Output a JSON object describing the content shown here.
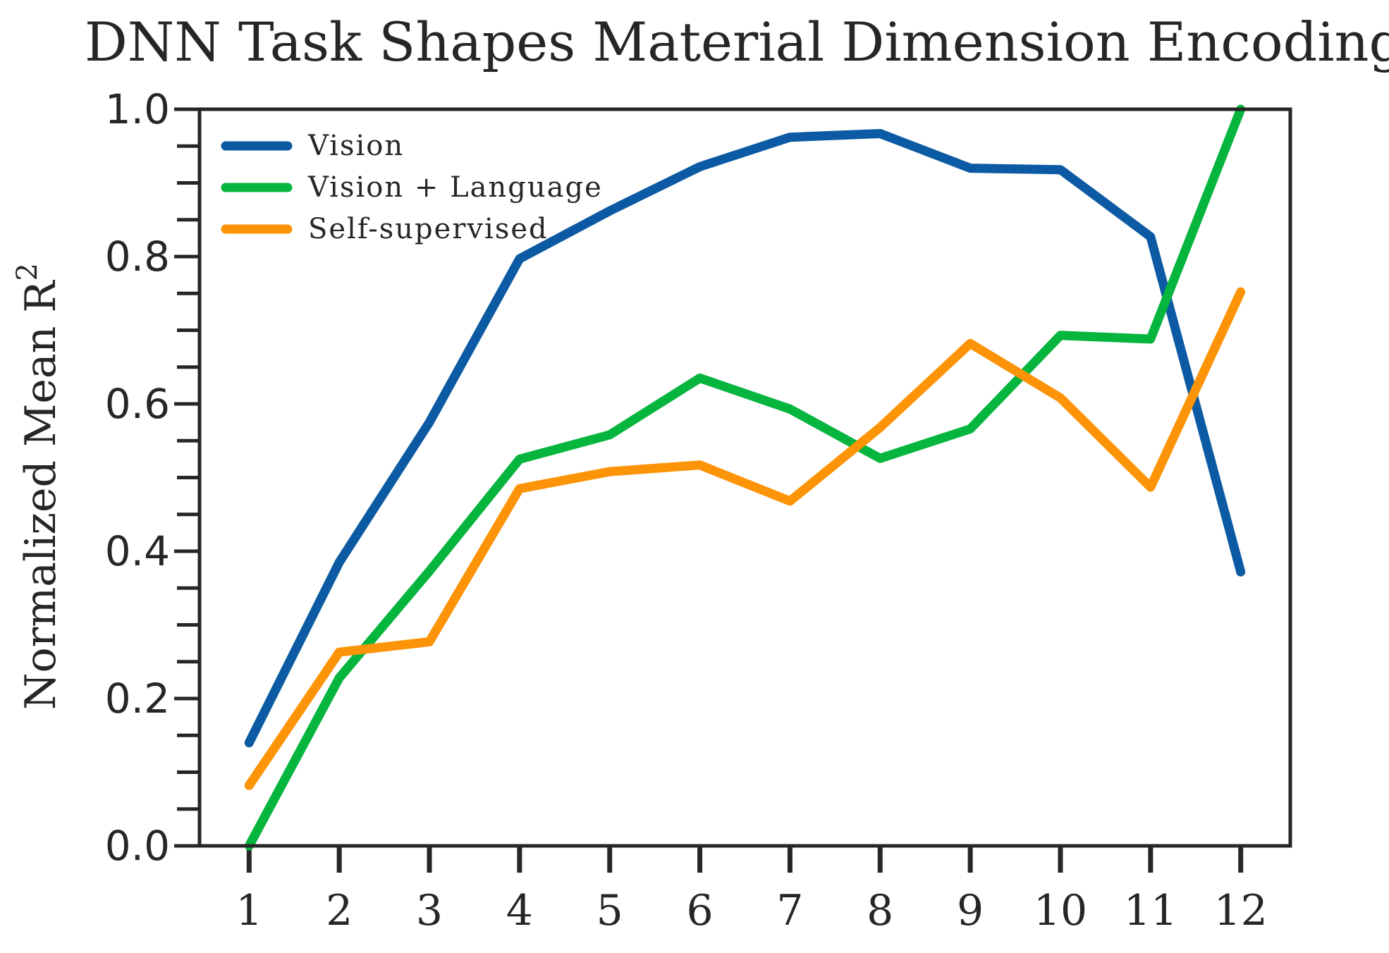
{
  "chart_data": {
    "type": "line",
    "title": "DNN Task Shapes Material Dimension Encoding",
    "xlabel": "",
    "ylabel": "Normalized Mean R",
    "ylabel_superscript": "2",
    "x": [
      1,
      2,
      3,
      4,
      5,
      6,
      7,
      8,
      9,
      10,
      11,
      12
    ],
    "xlim": [
      0.45,
      12.55
    ],
    "ylim": [
      0.0,
      1.0
    ],
    "y_ticks": [
      "0.0",
      "0.2",
      "0.4",
      "0.6",
      "0.8",
      "1.0"
    ],
    "x_ticks": [
      "1",
      "2",
      "3",
      "4",
      "5",
      "6",
      "7",
      "8",
      "9",
      "10",
      "11",
      "12"
    ],
    "grid": false,
    "legend_position": "top-left",
    "series": [
      {
        "name": "Vision",
        "color": "#0b5aa3",
        "values": [
          0.14,
          0.385,
          0.575,
          0.797,
          0.862,
          0.922,
          0.962,
          0.967,
          0.92,
          0.918,
          0.827,
          0.372
        ]
      },
      {
        "name": "Vision + Language",
        "color": "#06b53e",
        "values": [
          0.0,
          0.228,
          0.373,
          0.525,
          0.558,
          0.635,
          0.593,
          0.526,
          0.566,
          0.693,
          0.688,
          1.0
        ]
      },
      {
        "name": "Self-supervised",
        "color": "#fd9306",
        "values": [
          0.082,
          0.263,
          0.277,
          0.485,
          0.508,
          0.517,
          0.468,
          0.568,
          0.682,
          0.608,
          0.487,
          0.752
        ]
      }
    ]
  }
}
